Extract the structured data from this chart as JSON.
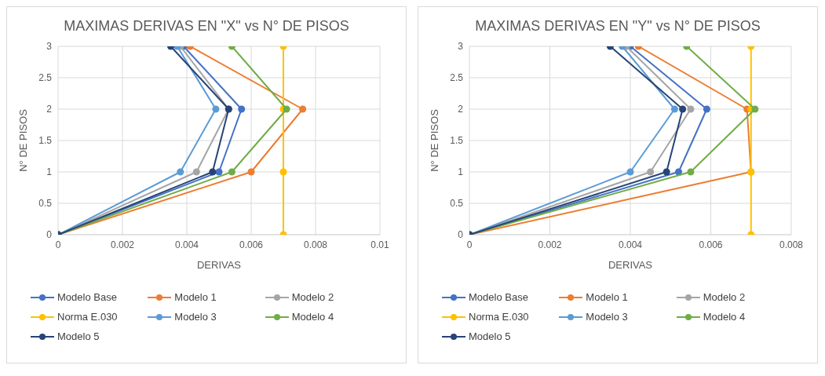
{
  "chart_data": [
    {
      "type": "line",
      "title": "MAXIMAS DERIVAS EN \"X\" vs N° DE PISOS",
      "xlabel": "DERIVAS",
      "ylabel": "N° DE PISOS",
      "xlim": [
        0,
        0.01
      ],
      "xticks": [
        0,
        0.002,
        0.004,
        0.006,
        0.008,
        0.01
      ],
      "ylim": [
        0,
        3
      ],
      "yticks": [
        0,
        0.5,
        1,
        1.5,
        2,
        2.5,
        3
      ],
      "grid": true,
      "legend": "bottom",
      "marker": "circle",
      "series": [
        {
          "name": "Modelo Base",
          "color": "#4472c4",
          "x": [
            0,
            0.005,
            0.0057,
            0.0039
          ],
          "values": [
            0,
            1,
            2,
            3
          ]
        },
        {
          "name": "Modelo 1",
          "color": "#ed7d31",
          "x": [
            0,
            0.006,
            0.0076,
            0.0041
          ],
          "values": [
            0,
            1,
            2,
            3
          ]
        },
        {
          "name": "Modelo 2",
          "color": "#a5a5a5",
          "x": [
            0,
            0.0043,
            0.0053,
            0.0038
          ],
          "values": [
            0,
            1,
            2,
            3
          ]
        },
        {
          "name": "Norma E.030",
          "color": "#ffc000",
          "x": [
            0.007,
            0.007,
            0.007,
            0.007
          ],
          "values": [
            0,
            1,
            2,
            3
          ]
        },
        {
          "name": "Modelo 3",
          "color": "#5b9bd5",
          "x": [
            0,
            0.0038,
            0.0049,
            0.0037
          ],
          "values": [
            0,
            1,
            2,
            3
          ]
        },
        {
          "name": "Modelo 4",
          "color": "#70ad47",
          "x": [
            0,
            0.0054,
            0.0071,
            0.0054
          ],
          "values": [
            0,
            1,
            2,
            3
          ]
        },
        {
          "name": "Modelo 5",
          "color": "#264478",
          "x": [
            0,
            0.0048,
            0.0053,
            0.0035
          ],
          "values": [
            0,
            1,
            2,
            3
          ]
        }
      ]
    },
    {
      "type": "line",
      "title": "MAXIMAS DERIVAS EN \"Y\" vs N° DE PISOS",
      "xlabel": "DERIVAS",
      "ylabel": "N° DE PISOS",
      "xlim": [
        0,
        0.008
      ],
      "xticks": [
        0,
        0.002,
        0.004,
        0.006,
        0.008
      ],
      "ylim": [
        0,
        3
      ],
      "yticks": [
        0,
        0.5,
        1,
        1.5,
        2,
        2.5,
        3
      ],
      "grid": true,
      "legend": "bottom",
      "marker": "circle",
      "series": [
        {
          "name": "Modelo Base",
          "color": "#4472c4",
          "x": [
            0,
            0.0052,
            0.0059,
            0.004
          ],
          "values": [
            0,
            1,
            2,
            3
          ]
        },
        {
          "name": "Modelo 1",
          "color": "#ed7d31",
          "x": [
            0,
            0.007,
            0.0069,
            0.0042
          ],
          "values": [
            0,
            1,
            2,
            3
          ]
        },
        {
          "name": "Modelo 2",
          "color": "#a5a5a5",
          "x": [
            0,
            0.0045,
            0.0055,
            0.0039
          ],
          "values": [
            0,
            1,
            2,
            3
          ]
        },
        {
          "name": "Norma E.030",
          "color": "#ffc000",
          "x": [
            0.007,
            0.007,
            0.007,
            0.007
          ],
          "values": [
            0,
            1,
            2,
            3
          ]
        },
        {
          "name": "Modelo 3",
          "color": "#5b9bd5",
          "x": [
            0,
            0.004,
            0.0051,
            0.0038
          ],
          "values": [
            0,
            1,
            2,
            3
          ]
        },
        {
          "name": "Modelo 4",
          "color": "#70ad47",
          "x": [
            0,
            0.0055,
            0.0071,
            0.0054
          ],
          "values": [
            0,
            1,
            2,
            3
          ]
        },
        {
          "name": "Modelo 5",
          "color": "#264478",
          "x": [
            0,
            0.0049,
            0.0053,
            0.0035
          ],
          "values": [
            0,
            1,
            2,
            3
          ]
        }
      ]
    }
  ]
}
